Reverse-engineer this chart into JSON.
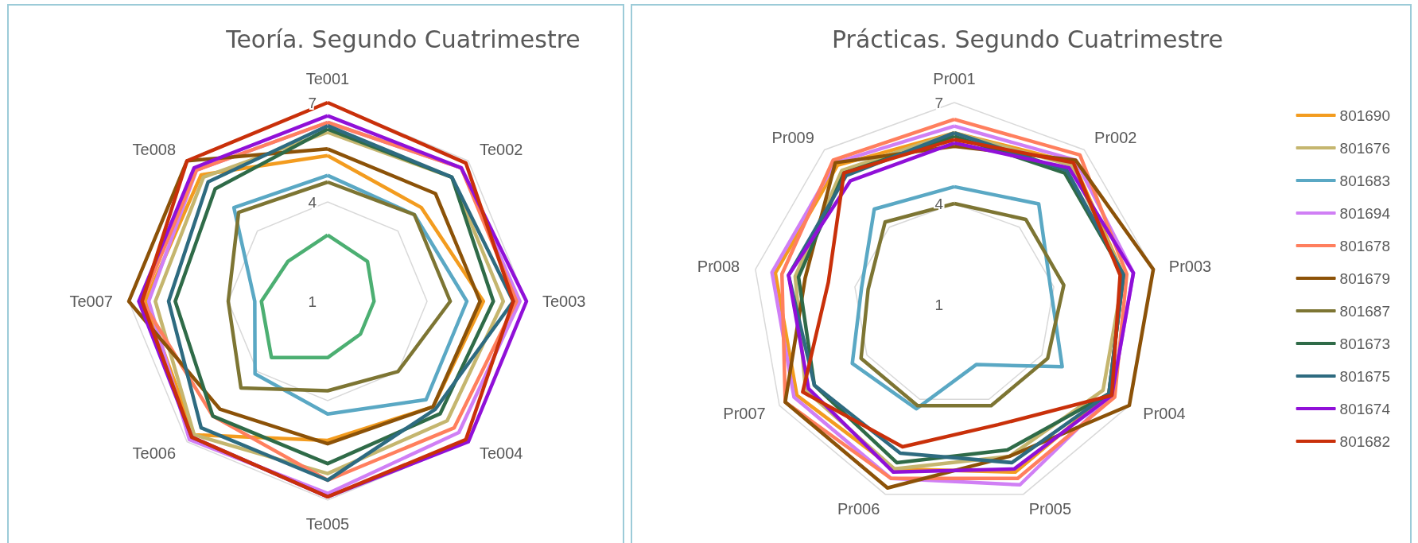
{
  "chart_data": [
    {
      "type": "radar",
      "title": "Teoría. Segundo Cuatrimestre",
      "categories": [
        "Te001",
        "Te002",
        "Te003",
        "Te004",
        "Te005",
        "Te006",
        "Te007",
        "Te008"
      ],
      "ylim": [
        1,
        7
      ],
      "yticks": [
        1,
        4,
        7
      ],
      "grid": true,
      "legend": false,
      "marker": "none",
      "line_style": "solid",
      "series": [
        {
          "color": "#f39c1f",
          "values": [
            5.4,
            5.0,
            5.7,
            5.5,
            5.2,
            6.7,
            6.5,
            6.4
          ]
        },
        {
          "color": "#c5b66f",
          "values": [
            6.1,
            6.3,
            6.3,
            6.1,
            6.2,
            6.7,
            6.2,
            6.3
          ]
        },
        {
          "color": "#5aa8c4",
          "values": [
            4.8,
            4.7,
            5.2,
            5.2,
            4.4,
            4.1,
            3.2,
            5.0
          ]
        },
        {
          "color": "#d07ff5",
          "values": [
            6.4,
            6.7,
            6.8,
            6.6,
            6.8,
            6.9,
            6.4,
            6.6
          ]
        },
        {
          "color": "#ff7f5e",
          "values": [
            6.4,
            6.7,
            6.7,
            6.4,
            6.4,
            5.9,
            6.6,
            6.6
          ]
        },
        {
          "color": "#8c5208",
          "values": [
            5.6,
            5.6,
            5.6,
            5.5,
            5.3,
            5.6,
            7.0,
            7.0
          ]
        },
        {
          "color": "#7d7533",
          "values": [
            4.6,
            4.7,
            4.7,
            4.0,
            3.7,
            4.7,
            4.0,
            4.8
          ]
        },
        {
          "color": "#2f6b48",
          "values": [
            6.2,
            6.3,
            6.0,
            5.8,
            5.9,
            5.9,
            5.6,
            5.8
          ]
        },
        {
          "color": "#2e6b80",
          "values": [
            6.3,
            6.3,
            6.6,
            5.6,
            6.4,
            6.4,
            5.8,
            6.1
          ]
        },
        {
          "color": "#9010d8",
          "values": [
            6.6,
            6.7,
            7.0,
            7.0,
            6.9,
            6.8,
            6.7,
            6.7
          ]
        },
        {
          "color": "#c9300a",
          "values": [
            7.0,
            6.9,
            6.6,
            6.9,
            6.9,
            6.8,
            6.6,
            7.0
          ]
        },
        {
          "color": "#4caf72",
          "values": [
            3.0,
            2.7,
            2.4,
            2.4,
            2.7,
            3.4,
            3.0,
            2.7
          ]
        }
      ]
    },
    {
      "type": "radar",
      "title": "Prácticas. Segundo Cuatrimestre",
      "categories": [
        "Pr001",
        "Pr002",
        "Pr003",
        "Pr004",
        "Pr005",
        "Pr006",
        "Pr007",
        "Pr008",
        "Pr009"
      ],
      "ylim": [
        1,
        7
      ],
      "yticks": [
        1,
        4,
        7
      ],
      "grid": true,
      "legend": "right",
      "marker": "none",
      "line_style": "solid",
      "series": [
        {
          "name": "801690",
          "color": "#f39c1f",
          "values": [
            6.1,
            6.5,
            6.1,
            6.3,
            6.3,
            6.2,
            6.4,
            6.4,
            6.4
          ]
        },
        {
          "name": "801676",
          "color": "#c5b66f",
          "values": [
            6.1,
            6.4,
            6.1,
            6.1,
            5.8,
            6.2,
            6.1,
            5.8,
            6.2
          ]
        },
        {
          "name": "801683",
          "color": "#5aa8c4",
          "values": [
            4.5,
            4.9,
            3.9,
            4.7,
            2.9,
            4.3,
            4.5,
            3.8,
            4.7
          ]
        },
        {
          "name": "801694",
          "color": "#d07ff5",
          "values": [
            6.3,
            6.6,
            6.4,
            6.4,
            6.7,
            6.5,
            6.5,
            6.5,
            6.5
          ]
        },
        {
          "name": "801678",
          "color": "#ff7f5e",
          "values": [
            6.5,
            6.8,
            6.2,
            6.5,
            6.5,
            6.5,
            6.8,
            6.2,
            6.6
          ]
        },
        {
          "name": "801679",
          "color": "#8c5208",
          "values": [
            5.7,
            6.6,
            7.0,
            7.0,
            5.8,
            6.8,
            6.8,
            5.5,
            6.5
          ]
        },
        {
          "name": "801687",
          "color": "#7d7533",
          "values": [
            4.0,
            4.3,
            4.3,
            4.2,
            4.2,
            4.2,
            4.2,
            3.6,
            4.2
          ]
        },
        {
          "name": "801673",
          "color": "#2f6b48",
          "values": [
            6.0,
            6.1,
            6.1,
            6.3,
            5.6,
            6.0,
            5.8,
            5.7,
            6.1
          ]
        },
        {
          "name": "801675",
          "color": "#2e6b80",
          "values": [
            6.1,
            6.2,
            6.1,
            6.3,
            6.0,
            5.7,
            5.8,
            6.0,
            6.0
          ]
        },
        {
          "name": "801674",
          "color": "#9010d8",
          "values": [
            5.8,
            6.3,
            6.4,
            6.4,
            6.2,
            6.3,
            6.0,
            6.0,
            5.8
          ]
        },
        {
          "name": "801682",
          "color": "#c9300a",
          "values": [
            5.9,
            6.5,
            6.0,
            6.4,
            4.8,
            5.5,
            6.2,
            4.8,
            6.1
          ]
        }
      ]
    }
  ]
}
